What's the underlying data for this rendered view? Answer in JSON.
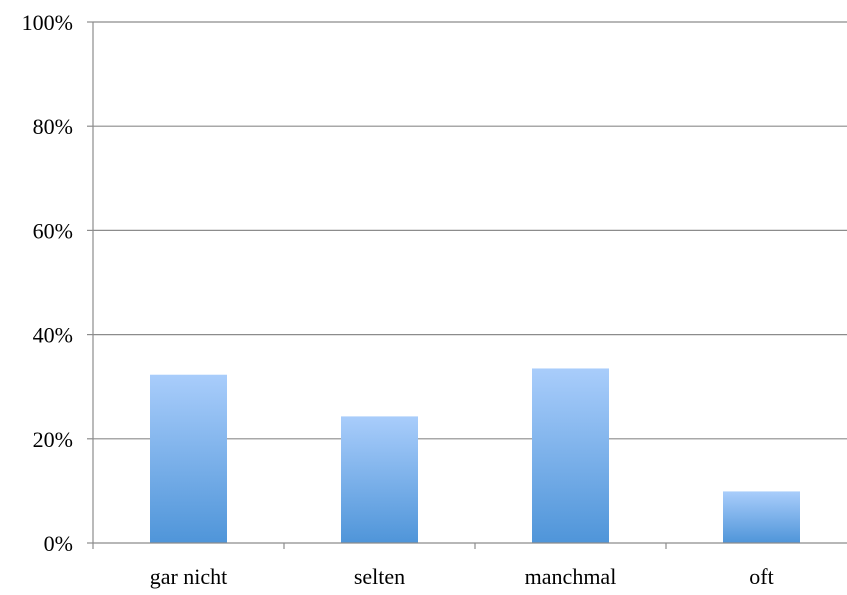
{
  "chart_data": {
    "type": "bar",
    "categories": [
      "gar nicht",
      "selten",
      "manchmal",
      "oft"
    ],
    "values": [
      32.3,
      24.3,
      33.5,
      9.9
    ],
    "ylim": [
      0,
      100
    ],
    "yticks": [
      "0%",
      "20%",
      "40%",
      "60%",
      "80%",
      "100%"
    ],
    "ytick_values": [
      0,
      20,
      40,
      60,
      80,
      100
    ],
    "grid": true,
    "legend": "none",
    "title": "",
    "xlabel": "",
    "ylabel": ""
  },
  "colors": {
    "bar_top": "#a9cdfb",
    "bar_bottom": "#4f95d9",
    "grid": "#8c8c8c",
    "axis": "#8c8c8c"
  }
}
